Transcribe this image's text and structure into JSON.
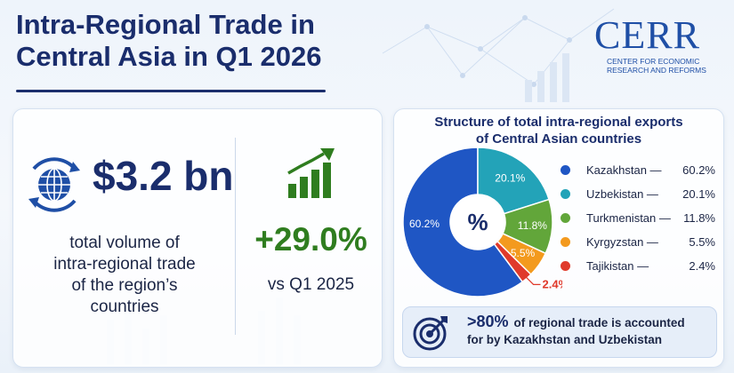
{
  "header": {
    "title_line1": "Intra-Regional Trade in",
    "title_line2": "Central Asia in Q1 2026"
  },
  "logo": {
    "mark": "CERR",
    "sub_line1": "CENTER FOR ECONOMIC",
    "sub_line2": "RESEARCH AND REFORMS"
  },
  "summary": {
    "total_value": "$3.2 bn",
    "total_desc": [
      "total volume of",
      "intra-regional trade",
      "of the region’s",
      "countries"
    ],
    "growth_value": "+29.0%",
    "growth_label": "vs Q1 2025",
    "globe_icon": "globe-icon",
    "growth_icon": "rising-bar-chart-icon"
  },
  "chart_data": {
    "type": "pie",
    "title_line1": "Structure of total intra-regional exports",
    "title_line2": "of Central Asian countries",
    "center_label": "%",
    "slices": [
      {
        "name": "Kazakhstan",
        "value": 60.2,
        "label": "60.2%",
        "color": "#1f56c4"
      },
      {
        "name": "Uzbekistan",
        "value": 20.1,
        "label": "20.1%",
        "color": "#23a3b8"
      },
      {
        "name": "Turkmenistan",
        "value": 11.8,
        "label": "11.8%",
        "color": "#62a63a"
      },
      {
        "name": "Kyrgyzstan",
        "value": 5.5,
        "label": "5.5%",
        "color": "#f39a1e"
      },
      {
        "name": "Tajikistan",
        "value": 2.4,
        "label": "2.4%",
        "color": "#e03a2b"
      }
    ],
    "legend_placement": "right"
  },
  "note": {
    "big": ">80%",
    "text_a": "of regional trade is accounted",
    "text_b": "for by Kazakhstan and Uzbekistan",
    "icon": "target-icon"
  }
}
